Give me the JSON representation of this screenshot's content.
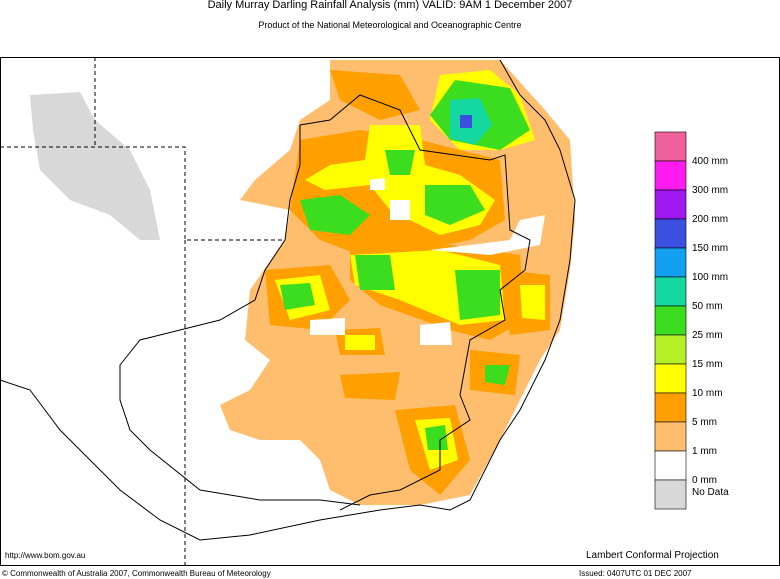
{
  "header": {
    "title": "Daily Murray Darling Rainfall Analysis (mm)  VALID: 9AM  1 December 2007",
    "subtitle": "Product of the National Meteorological and Oceanographic Centre"
  },
  "legend": [
    {
      "label": "400 mm",
      "color": "#f0609c"
    },
    {
      "label": "300 mm",
      "color": "#ff1cf0"
    },
    {
      "label": "200 mm",
      "color": "#a018f0"
    },
    {
      "label": "150 mm",
      "color": "#3c50e0"
    },
    {
      "label": "100 mm",
      "color": "#14a0f0"
    },
    {
      "label": "50 mm",
      "color": "#14d8a0"
    },
    {
      "label": "25 mm",
      "color": "#3cdc1e"
    },
    {
      "label": "15 mm",
      "color": "#b4ef28"
    },
    {
      "label": "10 mm",
      "color": "#ffff00"
    },
    {
      "label": "5 mm",
      "color": "#ffa000"
    },
    {
      "label": "1 mm",
      "color": "#ffbe6e"
    },
    {
      "label": "0 mm",
      "color": "#ffffff"
    },
    {
      "label": "No Data",
      "color": "#d8d8d8"
    }
  ],
  "footer": {
    "url": "http://www.bom.gov.au",
    "projection": "Lambert Conformal Projection",
    "copyright": "© Commonwealth of Australia 2007, Commonwealth Bureau of Meteorology",
    "issued": "Issued: 0407UTC 01 DEC 2007"
  }
}
